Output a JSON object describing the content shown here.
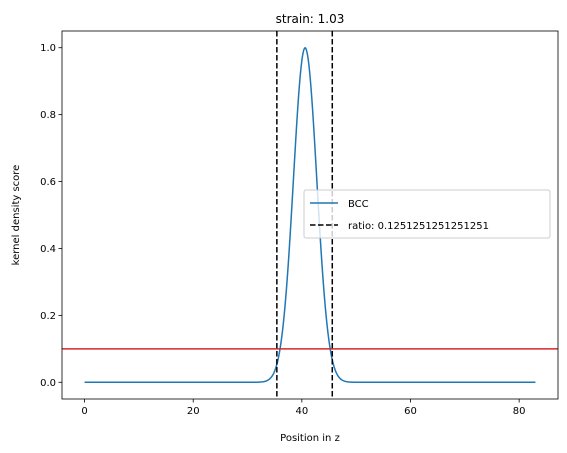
{
  "chart_data": {
    "type": "line",
    "title": "strain: 1.03",
    "xlabel": "Position in z",
    "ylabel": "kernel density score",
    "xlim": [
      -4.15,
      87.15
    ],
    "ylim": [
      -0.05,
      1.05
    ],
    "xticks": [
      0,
      20,
      40,
      60,
      80
    ],
    "yticks": [
      0.0,
      0.2,
      0.4,
      0.6,
      0.8,
      1.0
    ],
    "xtick_labels": [
      "0",
      "20",
      "40",
      "60",
      "80"
    ],
    "ytick_labels": [
      "0.0",
      "0.2",
      "0.4",
      "0.6",
      "0.8",
      "1.0"
    ],
    "grid": false,
    "legend_position": "center-right",
    "series": [
      {
        "name": "BCC",
        "color": "#1f77b4",
        "style": "solid",
        "x_range": [
          0,
          83
        ],
        "peak_x": 40.6,
        "peak_y": 1.0,
        "width_sigma": 2.15
      }
    ],
    "vertical_lines": [
      {
        "x": 35.4,
        "color": "#000000",
        "style": "dashed",
        "legend": "ratio: 0.1251251251251251"
      },
      {
        "x": 45.6,
        "color": "#000000",
        "style": "dashed"
      }
    ],
    "horizontal_lines": [
      {
        "y": 0.1,
        "color": "#d62728",
        "style": "solid"
      }
    ]
  }
}
